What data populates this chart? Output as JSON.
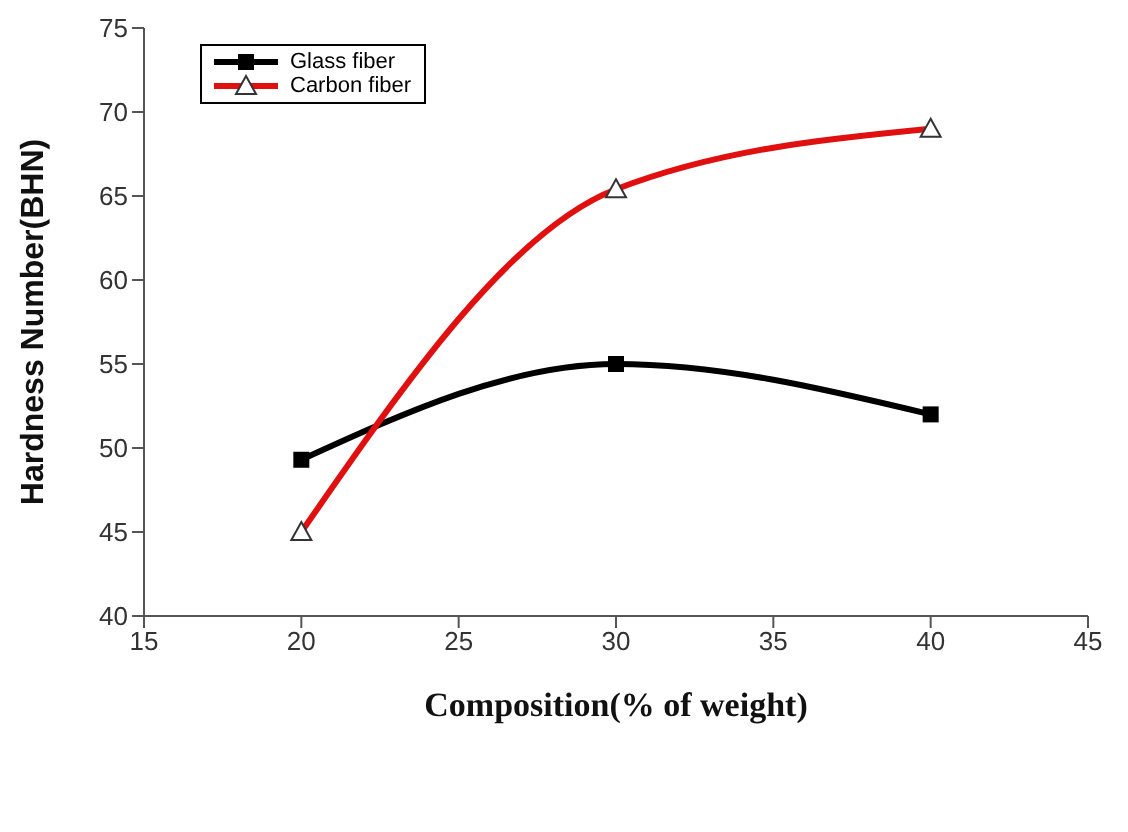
{
  "chart_data": {
    "type": "line",
    "xlabel": "Composition(% of weight)",
    "ylabel": "Hardness Number(BHN)",
    "x": [
      20,
      30,
      40
    ],
    "series": [
      {
        "name": "Glass fiber",
        "color": "#000000",
        "values": [
          49.3,
          55,
          52
        ],
        "marker": "square"
      },
      {
        "name": "Carbon fiber",
        "color": "#e01010",
        "values": [
          45,
          65.4,
          69
        ],
        "marker": "triangle"
      }
    ],
    "xlim": [
      15,
      45
    ],
    "xticks": [
      15,
      20,
      25,
      30,
      35,
      40,
      45
    ],
    "ylim": [
      40,
      75
    ],
    "yticks": [
      40,
      45,
      50,
      55,
      60,
      65,
      70,
      75
    ],
    "grid": false,
    "legend": "top left",
    "line_style": "solid"
  }
}
